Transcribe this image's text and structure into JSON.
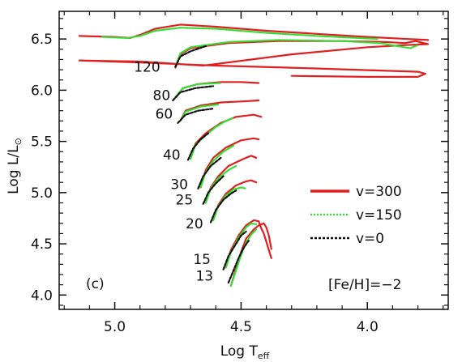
{
  "chart_data": {
    "type": "line",
    "title": "",
    "xlabel": "Log T",
    "xlabel_sub": "eff",
    "ylabel": "Log L/L",
    "ylabel_sub": "⊙",
    "xlim": [
      5.22,
      3.68
    ],
    "ylim": [
      3.86,
      6.77
    ],
    "x_reversed": true,
    "x_ticks": [
      5.0,
      4.5,
      4.0
    ],
    "x_tick_labels": [
      "5.0",
      "4.5",
      "4.0"
    ],
    "y_ticks": [
      4.0,
      4.5,
      5.0,
      5.5,
      6.0,
      6.5
    ],
    "y_tick_labels": [
      "4.0",
      "4.5",
      "5.0",
      "5.5",
      "6.0",
      "6.5"
    ],
    "grid": false,
    "legend_position": "right",
    "panel_label": "(c)",
    "metallicity_label": "[Fe/H]=−2",
    "colors": {
      "v300": "#e02020",
      "v150": "#33dd33",
      "v0": "#111111"
    },
    "series": [
      {
        "name": "v=300",
        "color": "#e02020",
        "style": "solid"
      },
      {
        "name": "v=150",
        "color": "#33dd33",
        "style": "dotted"
      },
      {
        "name": "v=0",
        "color": "#111111",
        "style": "dashed"
      }
    ],
    "mass_labels": [
      {
        "text": "120",
        "x": 4.82,
        "y": 6.23
      },
      {
        "text": "80",
        "x": 4.78,
        "y": 5.95
      },
      {
        "text": "60",
        "x": 4.77,
        "y": 5.77
      },
      {
        "text": "40",
        "x": 4.74,
        "y": 5.37
      },
      {
        "text": "30",
        "x": 4.71,
        "y": 5.08
      },
      {
        "text": "25",
        "x": 4.69,
        "y": 4.93
      },
      {
        "text": "20",
        "x": 4.65,
        "y": 4.7
      },
      {
        "text": "15",
        "x": 4.62,
        "y": 4.35
      },
      {
        "text": "13",
        "x": 4.61,
        "y": 4.19
      }
    ],
    "tracks": [
      {
        "mass": 120,
        "v300": [
          [
            4.76,
            6.22
          ],
          [
            4.74,
            6.35
          ],
          [
            4.7,
            6.41
          ],
          [
            4.55,
            6.46
          ],
          [
            4.35,
            6.48
          ],
          [
            4.1,
            6.48
          ],
          [
            3.93,
            6.47
          ],
          [
            3.85,
            6.46
          ],
          [
            3.81,
            6.48
          ],
          [
            3.76,
            6.45
          ],
          [
            3.85,
            6.44
          ],
          [
            4.0,
            6.42
          ],
          [
            4.3,
            6.35
          ],
          [
            4.65,
            6.24
          ],
          [
            4.9,
            6.28
          ],
          [
            5.14,
            6.29
          ],
          [
            4.9,
            6.27
          ],
          [
            4.6,
            6.24
          ],
          [
            4.3,
            6.22
          ],
          [
            4.05,
            6.2
          ],
          [
            3.8,
            6.18
          ],
          [
            3.77,
            6.16
          ],
          [
            3.8,
            6.13
          ],
          [
            4.0,
            6.13
          ],
          [
            4.3,
            6.14
          ]
        ],
        "v150": [
          [
            4.76,
            6.23
          ],
          [
            4.74,
            6.36
          ],
          [
            4.7,
            6.42
          ],
          [
            4.55,
            6.47
          ],
          [
            4.35,
            6.49
          ],
          [
            4.1,
            6.48
          ],
          [
            3.95,
            6.46
          ],
          [
            3.88,
            6.43
          ],
          [
            3.83,
            6.41
          ],
          [
            3.8,
            6.44
          ]
        ],
        "v0": [
          [
            4.76,
            6.23
          ],
          [
            4.74,
            6.33
          ],
          [
            4.7,
            6.38
          ],
          [
            4.64,
            6.43
          ]
        ]
      },
      {
        "mass": 120,
        "v300": [
          [
            5.14,
            6.53
          ],
          [
            5.0,
            6.52
          ],
          [
            4.94,
            6.51
          ],
          [
            4.9,
            6.54
          ],
          [
            4.84,
            6.6
          ],
          [
            4.74,
            6.64
          ],
          [
            4.6,
            6.62
          ],
          [
            4.4,
            6.58
          ],
          [
            4.2,
            6.55
          ],
          [
            4.0,
            6.52
          ],
          [
            3.76,
            6.49
          ]
        ],
        "v150": [
          [
            5.05,
            6.52
          ],
          [
            4.95,
            6.51
          ],
          [
            4.9,
            6.53
          ],
          [
            4.84,
            6.58
          ],
          [
            4.74,
            6.61
          ],
          [
            4.6,
            6.6
          ],
          [
            4.4,
            6.56
          ],
          [
            4.2,
            6.53
          ],
          [
            3.96,
            6.5
          ]
        ]
      },
      {
        "mass": 80,
        "v300": [
          [
            4.76,
            5.93
          ],
          [
            4.73,
            6.02
          ],
          [
            4.67,
            6.06
          ],
          [
            4.58,
            6.08
          ],
          [
            4.5,
            6.08
          ],
          [
            4.43,
            6.07
          ]
        ],
        "v150": [
          [
            4.76,
            5.93
          ],
          [
            4.73,
            6.02
          ],
          [
            4.67,
            6.06
          ],
          [
            4.58,
            6.07
          ]
        ],
        "v0": [
          [
            4.77,
            5.9
          ],
          [
            4.74,
            5.98
          ],
          [
            4.68,
            6.02
          ],
          [
            4.61,
            6.04
          ]
        ]
      },
      {
        "mass": 60,
        "v300": [
          [
            4.74,
            5.7
          ],
          [
            4.72,
            5.8
          ],
          [
            4.66,
            5.85
          ],
          [
            4.58,
            5.88
          ],
          [
            4.5,
            5.89
          ],
          [
            4.43,
            5.9
          ]
        ],
        "v150": [
          [
            4.74,
            5.7
          ],
          [
            4.72,
            5.79
          ],
          [
            4.66,
            5.84
          ],
          [
            4.59,
            5.86
          ]
        ],
        "v0": [
          [
            4.75,
            5.68
          ],
          [
            4.72,
            5.76
          ],
          [
            4.67,
            5.8
          ],
          [
            4.61,
            5.82
          ]
        ]
      },
      {
        "mass": 40,
        "v300": [
          [
            4.7,
            5.33
          ],
          [
            4.68,
            5.48
          ],
          [
            4.64,
            5.58
          ],
          [
            4.58,
            5.68
          ],
          [
            4.52,
            5.74
          ],
          [
            4.45,
            5.76
          ],
          [
            4.42,
            5.74
          ]
        ],
        "v150": [
          [
            4.7,
            5.33
          ],
          [
            4.68,
            5.47
          ],
          [
            4.64,
            5.56
          ],
          [
            4.6,
            5.64
          ],
          [
            4.56,
            5.7
          ],
          [
            4.53,
            5.73
          ]
        ],
        "v0": [
          [
            4.71,
            5.32
          ],
          [
            4.69,
            5.43
          ],
          [
            4.66,
            5.52
          ],
          [
            4.63,
            5.58
          ]
        ]
      },
      {
        "mass": 30,
        "v300": [
          [
            4.66,
            5.05
          ],
          [
            4.64,
            5.22
          ],
          [
            4.61,
            5.34
          ],
          [
            4.56,
            5.44
          ],
          [
            4.5,
            5.51
          ],
          [
            4.45,
            5.53
          ],
          [
            4.43,
            5.52
          ]
        ],
        "v150": [
          [
            4.66,
            5.05
          ],
          [
            4.64,
            5.2
          ],
          [
            4.61,
            5.31
          ],
          [
            4.57,
            5.4
          ],
          [
            4.53,
            5.46
          ]
        ],
        "v0": [
          [
            4.67,
            5.04
          ],
          [
            4.65,
            5.16
          ],
          [
            4.62,
            5.26
          ],
          [
            4.58,
            5.34
          ]
        ]
      },
      {
        "mass": 25,
        "v300": [
          [
            4.64,
            4.9
          ],
          [
            4.62,
            5.05
          ],
          [
            4.59,
            5.16
          ],
          [
            4.55,
            5.26
          ],
          [
            4.49,
            5.33
          ],
          [
            4.46,
            5.36
          ],
          [
            4.44,
            5.34
          ]
        ],
        "v150": [
          [
            4.64,
            4.9
          ],
          [
            4.62,
            5.04
          ],
          [
            4.59,
            5.14
          ],
          [
            4.55,
            5.22
          ],
          [
            4.52,
            5.26
          ]
        ],
        "v0": [
          [
            4.65,
            4.89
          ],
          [
            4.63,
            5.0
          ],
          [
            4.6,
            5.09
          ],
          [
            4.57,
            5.16
          ]
        ]
      },
      {
        "mass": 20,
        "v300": [
          [
            4.61,
            4.73
          ],
          [
            4.59,
            4.88
          ],
          [
            4.56,
            4.99
          ],
          [
            4.52,
            5.07
          ],
          [
            4.48,
            5.11
          ],
          [
            4.46,
            5.12
          ],
          [
            4.44,
            5.1
          ]
        ],
        "v150": [
          [
            4.61,
            4.73
          ],
          [
            4.59,
            4.87
          ],
          [
            4.56,
            4.97
          ],
          [
            4.53,
            5.03
          ],
          [
            4.5,
            5.05
          ],
          [
            4.48,
            5.04
          ]
        ],
        "v0": [
          [
            4.62,
            4.71
          ],
          [
            4.6,
            4.83
          ],
          [
            4.57,
            4.93
          ],
          [
            4.54,
            4.99
          ],
          [
            4.52,
            5.02
          ]
        ]
      },
      {
        "mass": 15,
        "v300": [
          [
            4.56,
            4.27
          ],
          [
            4.54,
            4.44
          ],
          [
            4.51,
            4.58
          ],
          [
            4.48,
            4.68
          ],
          [
            4.45,
            4.73
          ],
          [
            4.43,
            4.72
          ],
          [
            4.42,
            4.65
          ],
          [
            4.41,
            4.6
          ],
          [
            4.4,
            4.52
          ],
          [
            4.38,
            4.36
          ]
        ],
        "v150": [
          [
            4.56,
            4.27
          ],
          [
            4.54,
            4.42
          ],
          [
            4.51,
            4.56
          ],
          [
            4.48,
            4.66
          ],
          [
            4.46,
            4.7
          ],
          [
            4.44,
            4.69
          ]
        ],
        "v0": [
          [
            4.57,
            4.25
          ],
          [
            4.55,
            4.38
          ],
          [
            4.52,
            4.5
          ],
          [
            4.5,
            4.58
          ],
          [
            4.48,
            4.62
          ]
        ]
      },
      {
        "mass": 13,
        "v300": [
          [
            4.54,
            4.09
          ],
          [
            4.52,
            4.26
          ],
          [
            4.5,
            4.42
          ],
          [
            4.48,
            4.55
          ],
          [
            4.45,
            4.64
          ],
          [
            4.43,
            4.68
          ],
          [
            4.41,
            4.7
          ],
          [
            4.4,
            4.66
          ],
          [
            4.39,
            4.58
          ],
          [
            4.38,
            4.45
          ]
        ],
        "v150": [
          [
            4.54,
            4.09
          ],
          [
            4.52,
            4.24
          ],
          [
            4.5,
            4.39
          ],
          [
            4.48,
            4.51
          ],
          [
            4.46,
            4.59
          ],
          [
            4.44,
            4.64
          ]
        ],
        "v0": [
          [
            4.55,
            4.12
          ],
          [
            4.53,
            4.24
          ],
          [
            4.51,
            4.36
          ],
          [
            4.49,
            4.46
          ],
          [
            4.47,
            4.53
          ]
        ]
      }
    ]
  }
}
